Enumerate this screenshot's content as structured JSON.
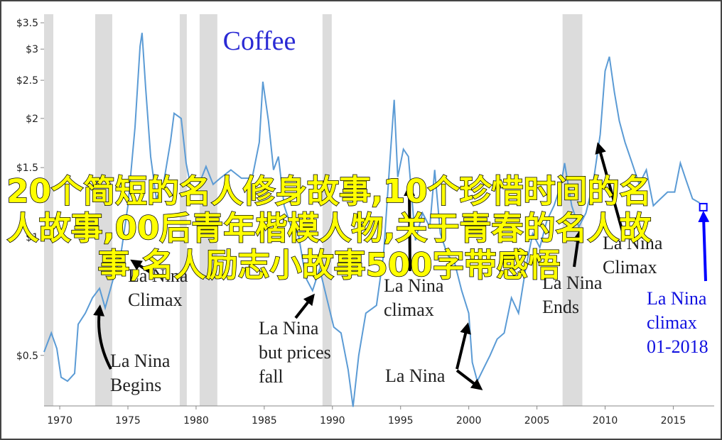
{
  "chart_data": {
    "type": "line",
    "title": "Coffee",
    "title_color": "#2a2ad4",
    "color": "#5b9bd5",
    "log_scale": true,
    "x": [
      1968.85,
      1969.38,
      1969.79,
      1970.1,
      1970.57,
      1971.09,
      1971.35,
      1971.88,
      1972.4,
      1972.92,
      1973.33,
      1973.96,
      1974.48,
      1975.0,
      1975.52,
      1975.89,
      1976.04,
      1976.3,
      1976.67,
      1977.08,
      1977.6,
      1978.13,
      1978.39,
      1978.91,
      1979.27,
      1979.69,
      1980.21,
      1980.73,
      1981.25,
      1981.77,
      1982.55,
      1983.33,
      1984.11,
      1984.64,
      1984.9,
      1985.31,
      1985.68,
      1986.04,
      1986.46,
      1986.98,
      1987.5,
      1988.02,
      1988.54,
      1989.06,
      1989.58,
      1990.1,
      1990.63,
      1991.15,
      1991.51,
      1991.93,
      1992.45,
      1993.23,
      1993.75,
      1994.17,
      1994.53,
      1994.79,
      1995.21,
      1995.57,
      1996.09,
      1996.61,
      1997.14,
      1997.5,
      1997.92,
      1998.44,
      1998.96,
      1999.48,
      2000.0,
      2000.26,
      2000.63,
      2001.04,
      2001.56,
      2002.08,
      2002.6,
      2003.13,
      2003.65,
      2004.17,
      2004.69,
      2005.21,
      2005.73,
      2006.25,
      2006.77,
      2007.03,
      2007.55,
      2008.07,
      2008.59,
      2009.11,
      2009.64,
      2010.0,
      2010.31,
      2010.68,
      2011.04,
      2011.46,
      2011.98,
      2012.5,
      2013.02,
      2013.54,
      2014.06,
      2014.58,
      2015.1,
      2015.52,
      2015.89,
      2016.41,
      2016.93
    ],
    "values": [
      0.51,
      0.57,
      0.52,
      0.44,
      0.43,
      0.45,
      0.6,
      0.64,
      0.7,
      0.74,
      0.66,
      0.79,
      0.9,
      1.2,
      1.9,
      3.05,
      3.3,
      2.4,
      1.6,
      1.25,
      1.36,
      1.75,
      2.06,
      2.0,
      1.54,
      1.3,
      1.36,
      1.51,
      1.36,
      1.41,
      1.48,
      1.41,
      1.41,
      1.74,
      2.48,
      1.97,
      1.48,
      1.6,
      1.2,
      1.06,
      1.02,
      0.79,
      0.73,
      0.83,
      0.7,
      0.59,
      0.57,
      0.46,
      0.37,
      0.5,
      0.64,
      0.67,
      0.9,
      1.48,
      2.23,
      1.42,
      1.67,
      1.6,
      0.98,
      1.15,
      1.06,
      1.48,
      1.02,
      0.9,
      0.86,
      0.73,
      0.64,
      0.48,
      0.43,
      0.46,
      0.5,
      0.55,
      0.57,
      0.7,
      0.64,
      0.83,
      1.02,
      0.94,
      1.1,
      1.2,
      1.36,
      1.54,
      1.2,
      1.06,
      1.15,
      1.36,
      1.82,
      2.64,
      2.87,
      2.33,
      1.97,
      1.74,
      1.54,
      1.36,
      1.48,
      1.2,
      1.25,
      1.3,
      1.3,
      1.54,
      1.41,
      1.25,
      1.22
    ],
    "xlim": [
      1968.85,
      2018.0
    ],
    "ylim": [
      0.372,
      3.68
    ],
    "xticks": [
      1970,
      1975,
      1980,
      1985,
      1990,
      1995,
      2000,
      2005,
      2010,
      2015
    ],
    "yticks": [
      {
        "value": 0.5,
        "label": "$0.5"
      },
      {
        "value": 1,
        "label": "$1"
      },
      {
        "value": 1.5,
        "label": "$1.5"
      },
      {
        "value": 2,
        "label": "$2"
      },
      {
        "value": 2.5,
        "label": "$2.5"
      },
      {
        "value": 3,
        "label": "$3"
      },
      {
        "value": 3.5,
        "label": "$3.5"
      }
    ],
    "shaded_ranges": [
      [
        1968.85,
        1969.53
      ],
      [
        1972.6,
        1973.85
      ],
      [
        1978.8,
        1979.32
      ],
      [
        1980.26,
        1981.56
      ],
      [
        1989.27,
        1989.95
      ],
      [
        2006.88,
        2008.33
      ]
    ],
    "shade_color": "#dcdcdc",
    "marker": {
      "x": 2017.2,
      "value": 1.19,
      "color": "#0000ff"
    },
    "annotations": [
      {
        "lines": [
          "La Nina",
          "Climax"
        ]
      },
      {
        "lines": [
          "La Nina",
          "Begins"
        ]
      },
      {
        "lines": [
          "La Nina",
          "but prices",
          "fall"
        ]
      },
      {
        "lines": [
          "La Nina",
          "climax"
        ]
      },
      {
        "lines": [
          "La Nina"
        ]
      },
      {
        "lines": [
          "La Nina",
          "Ends"
        ]
      },
      {
        "lines": [
          "La Nina",
          "Climax"
        ]
      },
      {
        "lines": [
          "La Nina",
          "climax",
          "01-2018"
        ],
        "color": "#1010e0"
      }
    ]
  },
  "overlay_text": "20个简短的名人修身故事,10个珍惜时间的名人故事,00后青年楷模人物,关于青春的名人故事,名人励志小故事500字带感悟"
}
